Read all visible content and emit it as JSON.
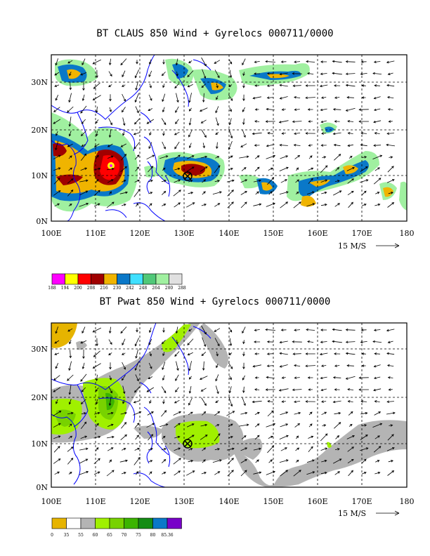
{
  "panels": [
    {
      "title": "BT CLAUS 850 Wind + Gyrelocs 000711/0000",
      "x_ticks": [
        "100E",
        "110E",
        "120E",
        "130E",
        "140E",
        "150E",
        "160E",
        "170E",
        "180"
      ],
      "y_ticks": [
        "0N",
        "10N",
        "20N",
        "30N"
      ],
      "vector_ref": "15 M/S",
      "colorbar": {
        "colors": [
          "#ff00ff",
          "#ffff00",
          "#ff0000",
          "#a00000",
          "#f0b400",
          "#0a78c8",
          "#40e0ff",
          "#50c878",
          "#a0f0a0",
          "#e0e0e0"
        ],
        "labels": [
          "188",
          "194",
          "200",
          "208",
          "216",
          "230",
          "242",
          "248",
          "264",
          "280",
          "288"
        ]
      }
    },
    {
      "title": "BT Pwat 850 Wind + Gyrelocs 000711/0000",
      "x_ticks": [
        "100E",
        "110E",
        "120E",
        "130E",
        "140E",
        "150E",
        "160E",
        "170E",
        "180"
      ],
      "y_ticks": [
        "0N",
        "10N",
        "20N",
        "30N"
      ],
      "vector_ref": "15 M/S",
      "colorbar": {
        "colors": [
          "#e6b400",
          "#ffffff",
          "#b4b4b4",
          "#a0f000",
          "#78d200",
          "#3cb400",
          "#148c14",
          "#0a78c8",
          "#7800c8"
        ],
        "labels": [
          "0",
          "35",
          "55",
          "60",
          "65",
          "70",
          "75",
          "80",
          "85.36"
        ]
      }
    }
  ],
  "chart_data": [
    {
      "type": "heatmap",
      "title": "BT CLAUS 850 Wind + Gyrelocs 000711/0000",
      "x_ticks": [
        "100E",
        "110E",
        "120E",
        "130E",
        "140E",
        "150E",
        "160E",
        "170E",
        "180"
      ],
      "y_ticks": [
        "0N",
        "10N",
        "20N",
        "30N"
      ],
      "xlim": [
        100,
        180
      ],
      "ylim": [
        0,
        35
      ],
      "colorbar_levels": [
        188,
        194,
        200,
        208,
        216,
        230,
        242,
        248,
        264,
        280,
        288
      ],
      "gyre_center": {
        "lon": 130,
        "lat": 10
      },
      "vector_reference": "15 M/S"
    },
    {
      "type": "heatmap",
      "title": "BT Pwat 850 Wind + Gyrelocs 000711/0000",
      "x_ticks": [
        "100E",
        "110E",
        "120E",
        "130E",
        "140E",
        "150E",
        "160E",
        "170E",
        "180"
      ],
      "y_ticks": [
        "0N",
        "10N",
        "20N",
        "30N"
      ],
      "xlim": [
        100,
        180
      ],
      "ylim": [
        0,
        35
      ],
      "colorbar_levels": [
        0,
        35,
        55,
        60,
        65,
        70,
        75,
        80,
        85.36
      ],
      "gyre_center": {
        "lon": 130,
        "lat": 10
      },
      "vector_reference": "15 M/S"
    }
  ]
}
